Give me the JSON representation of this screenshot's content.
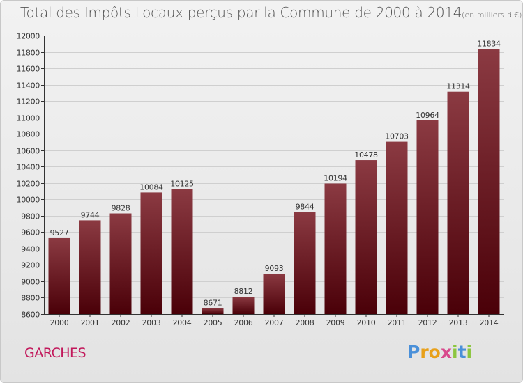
{
  "title": {
    "main": "Total des Impôts Locaux perçus par la Commune de 2000 à 2014",
    "unit": "(en milliers d'€)"
  },
  "place": "GARCHES",
  "logo": {
    "text": "Proxiti",
    "letters": [
      "P",
      "r",
      "o",
      "x",
      "i",
      "t",
      "i"
    ],
    "colors": [
      "#4a90d9",
      "#e8a019",
      "#e8a019",
      "#d84a8c",
      "#8cc63f",
      "#4a90d9",
      "#8cc63f"
    ]
  },
  "colors": {
    "bar_top": "#8b3a42",
    "bar_bottom": "#4a0008",
    "grid": "#cfcfcf",
    "axis": "#333333",
    "label": "#333333"
  },
  "chart_data": {
    "type": "bar",
    "title": "Total des Impôts Locaux perçus par la Commune de 2000 à 2014",
    "xlabel": "",
    "ylabel": "",
    "ylim": [
      8600,
      12000
    ],
    "ytick_step": 200,
    "categories": [
      "2000",
      "2001",
      "2002",
      "2003",
      "2004",
      "2005",
      "2006",
      "2007",
      "2008",
      "2009",
      "2010",
      "2011",
      "2012",
      "2013",
      "2014"
    ],
    "values": [
      9527,
      9744,
      9828,
      10084,
      10125,
      8671,
      8812,
      9093,
      9844,
      10194,
      10478,
      10703,
      10964,
      11314,
      11834
    ]
  }
}
